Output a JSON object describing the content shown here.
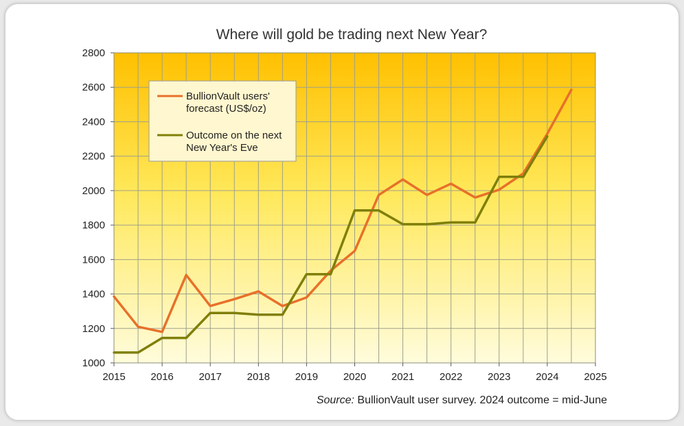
{
  "chart_data": {
    "type": "line",
    "title": "Where will gold be trading next New Year?",
    "xlabel": "",
    "ylabel": "",
    "xlim": [
      2015,
      2025
    ],
    "ylim": [
      1000,
      2800
    ],
    "x_ticks": [
      "2015",
      "2016",
      "2017",
      "2018",
      "2019",
      "2020",
      "2021",
      "2022",
      "2023",
      "2024",
      "2025"
    ],
    "y_ticks": [
      "1000",
      "1200",
      "1400",
      "1600",
      "1800",
      "2000",
      "2200",
      "2400",
      "2600",
      "2800"
    ],
    "grid": true,
    "legend_position": "top-left",
    "series": [
      {
        "name_lines": [
          "BullionVault users'",
          "forecast (US$/oz)"
        ],
        "color": "#e8702a",
        "points": [
          [
            2015.0,
            1385
          ],
          [
            2015.5,
            1210
          ],
          [
            2016.0,
            1180
          ],
          [
            2016.5,
            1510
          ],
          [
            2017.0,
            1330
          ],
          [
            2017.5,
            1370
          ],
          [
            2018.0,
            1415
          ],
          [
            2018.5,
            1330
          ],
          [
            2019.0,
            1380
          ],
          [
            2019.5,
            1535
          ],
          [
            2020.0,
            1650
          ],
          [
            2020.5,
            1975
          ],
          [
            2021.0,
            2065
          ],
          [
            2021.5,
            1975
          ],
          [
            2022.0,
            2040
          ],
          [
            2022.5,
            1960
          ],
          [
            2023.0,
            2005
          ],
          [
            2023.5,
            2100
          ],
          [
            2024.0,
            2330
          ],
          [
            2024.5,
            2585
          ]
        ]
      },
      {
        "name_lines": [
          "Outcome on the next",
          "New Year's Eve"
        ],
        "color": "#7f7f0a",
        "points": [
          [
            2015.0,
            1060
          ],
          [
            2015.5,
            1060
          ],
          [
            2016.0,
            1145
          ],
          [
            2016.5,
            1145
          ],
          [
            2017.0,
            1290
          ],
          [
            2017.5,
            1290
          ],
          [
            2018.0,
            1280
          ],
          [
            2018.5,
            1280
          ],
          [
            2019.0,
            1515
          ],
          [
            2019.5,
            1515
          ],
          [
            2020.0,
            1885
          ],
          [
            2020.5,
            1885
          ],
          [
            2021.0,
            1805
          ],
          [
            2021.5,
            1805
          ],
          [
            2022.0,
            1815
          ],
          [
            2022.5,
            1815
          ],
          [
            2023.0,
            2080
          ],
          [
            2023.5,
            2080
          ],
          [
            2024.0,
            2315
          ]
        ]
      }
    ],
    "colors": {
      "gradient_top": "#ffc000",
      "gradient_bottom": "#fffcdc",
      "grid": "#9f9f8a",
      "legend_bg": "#fff7cf"
    }
  },
  "source": {
    "label": "Source:",
    "text": " BullionVault user survey. 2024 outcome = mid-June"
  }
}
